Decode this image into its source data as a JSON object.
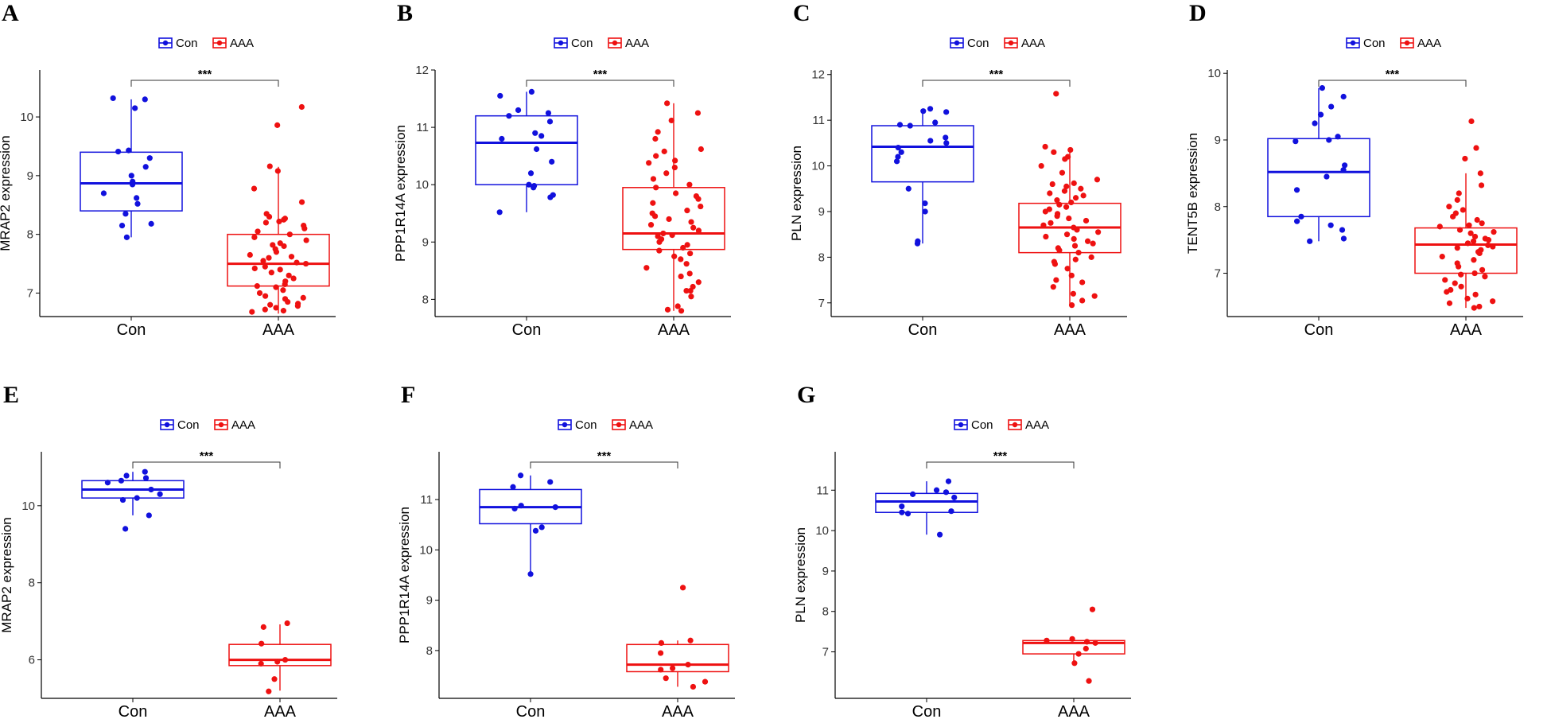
{
  "colors": {
    "con": "#1111dd",
    "aaa": "#ee1111",
    "axis": "#000000"
  },
  "chart_data": [
    {
      "type": "box",
      "panel": "A",
      "ylabel": "MRAP2 expression",
      "xlabel": "",
      "categories": [
        "Con",
        "AAA"
      ],
      "ylim": [
        6.6,
        10.8
      ],
      "yticks": [
        7,
        8,
        9,
        10
      ],
      "legend": [
        "Con",
        "AAA"
      ],
      "legend_position": "top",
      "significance": "***",
      "series": [
        {
          "name": "Con",
          "q1": 8.4,
          "median": 8.87,
          "q3": 9.4,
          "whisker_low": 7.95,
          "whisker_high": 10.3,
          "points": [
            10.32,
            10.3,
            10.15,
            9.43,
            9.41,
            9.3,
            9.15,
            9.0,
            8.9,
            8.85,
            8.7,
            8.62,
            8.52,
            8.35,
            8.18,
            8.15,
            7.95
          ]
        },
        {
          "name": "AAA",
          "q1": 7.12,
          "median": 7.5,
          "q3": 8.0,
          "whisker_low": 6.65,
          "whisker_high": 9.15,
          "points": [
            10.17,
            9.86,
            9.16,
            9.08,
            8.78,
            8.55,
            8.35,
            8.3,
            8.27,
            8.25,
            8.22,
            8.2,
            8.15,
            8.1,
            8.05,
            8.0,
            7.95,
            7.9,
            7.85,
            7.82,
            7.8,
            7.75,
            7.7,
            7.65,
            7.62,
            7.6,
            7.55,
            7.52,
            7.5,
            7.45,
            7.42,
            7.4,
            7.35,
            7.3,
            7.25,
            7.2,
            7.15,
            7.12,
            7.1,
            7.05,
            7.0,
            6.95,
            6.92,
            6.9,
            6.85,
            6.82,
            6.8,
            6.78,
            6.75,
            6.72,
            6.7,
            6.68
          ]
        }
      ]
    },
    {
      "type": "box",
      "panel": "B",
      "ylabel": "PPP1R14A expression",
      "xlabel": "",
      "categories": [
        "Con",
        "AAA"
      ],
      "ylim": [
        7.7,
        12.0
      ],
      "yticks": [
        8,
        9,
        10,
        11,
        12
      ],
      "legend": [
        "Con",
        "AAA"
      ],
      "legend_position": "top",
      "significance": "***",
      "series": [
        {
          "name": "Con",
          "q1": 10.0,
          "median": 10.73,
          "q3": 11.2,
          "whisker_low": 9.52,
          "whisker_high": 11.62,
          "points": [
            11.62,
            11.55,
            11.3,
            11.25,
            11.2,
            11.1,
            10.9,
            10.85,
            10.8,
            10.62,
            10.4,
            10.2,
            10.0,
            9.98,
            9.95,
            9.82,
            9.78,
            9.52
          ]
        },
        {
          "name": "AAA",
          "q1": 8.87,
          "median": 9.15,
          "q3": 9.95,
          "whisker_low": 7.8,
          "whisker_high": 11.42,
          "points": [
            11.42,
            11.25,
            11.12,
            10.92,
            10.8,
            10.62,
            10.58,
            10.5,
            10.42,
            10.38,
            10.3,
            10.2,
            10.1,
            10.0,
            9.95,
            9.85,
            9.8,
            9.75,
            9.68,
            9.62,
            9.55,
            9.5,
            9.45,
            9.4,
            9.35,
            9.3,
            9.25,
            9.2,
            9.15,
            9.12,
            9.1,
            9.05,
            9.0,
            8.95,
            8.9,
            8.85,
            8.8,
            8.75,
            8.7,
            8.62,
            8.55,
            8.45,
            8.4,
            8.3,
            8.22,
            8.15,
            8.15,
            8.05,
            7.88,
            7.82,
            7.8
          ]
        }
      ]
    },
    {
      "type": "box",
      "panel": "C",
      "ylabel": "PLN expression",
      "xlabel": "",
      "categories": [
        "Con",
        "AAA"
      ],
      "ylim": [
        6.7,
        12.1
      ],
      "yticks": [
        7,
        8,
        9,
        10,
        11,
        12
      ],
      "legend": [
        "Con",
        "AAA"
      ],
      "legend_position": "top",
      "significance": "***",
      "series": [
        {
          "name": "Con",
          "q1": 9.65,
          "median": 10.42,
          "q3": 10.88,
          "whisker_low": 8.3,
          "whisker_high": 11.25,
          "points": [
            11.25,
            11.2,
            11.18,
            10.95,
            10.9,
            10.88,
            10.62,
            10.55,
            10.5,
            10.4,
            10.3,
            10.2,
            10.1,
            9.5,
            9.18,
            9.0,
            8.35,
            8.3
          ]
        },
        {
          "name": "AAA",
          "q1": 8.1,
          "median": 8.65,
          "q3": 9.18,
          "whisker_low": 6.95,
          "whisker_high": 10.35,
          "points": [
            11.58,
            10.42,
            10.35,
            10.3,
            10.2,
            10.15,
            10.0,
            9.85,
            9.7,
            9.62,
            9.6,
            9.55,
            9.5,
            9.45,
            9.4,
            9.35,
            9.3,
            9.25,
            9.2,
            9.15,
            9.1,
            9.05,
            9.0,
            8.95,
            8.9,
            8.85,
            8.8,
            8.75,
            8.7,
            8.65,
            8.6,
            8.55,
            8.5,
            8.45,
            8.4,
            8.35,
            8.3,
            8.25,
            8.2,
            8.15,
            8.1,
            8.0,
            7.95,
            7.9,
            7.85,
            7.75,
            7.6,
            7.5,
            7.45,
            7.35,
            7.2,
            7.15,
            7.05,
            6.95
          ]
        }
      ]
    },
    {
      "type": "box",
      "panel": "D",
      "ylabel": "TENT5B expression",
      "xlabel": "",
      "categories": [
        "Con",
        "AAA"
      ],
      "ylim": [
        6.35,
        10.05
      ],
      "yticks": [
        7,
        8,
        9,
        10
      ],
      "legend": [
        "Con",
        "AAA"
      ],
      "legend_position": "top",
      "significance": "***",
      "series": [
        {
          "name": "Con",
          "q1": 7.85,
          "median": 8.52,
          "q3": 9.02,
          "whisker_low": 7.48,
          "whisker_high": 9.78,
          "points": [
            9.78,
            9.65,
            9.5,
            9.38,
            9.25,
            9.05,
            9.0,
            8.98,
            8.62,
            8.55,
            8.45,
            8.25,
            7.85,
            7.78,
            7.72,
            7.65,
            7.52,
            7.48
          ]
        },
        {
          "name": "AAA",
          "q1": 7.0,
          "median": 7.43,
          "q3": 7.68,
          "whisker_low": 6.48,
          "whisker_high": 8.5,
          "points": [
            9.28,
            8.88,
            8.72,
            8.5,
            8.32,
            8.2,
            8.1,
            8.0,
            7.95,
            7.9,
            7.85,
            7.8,
            7.75,
            7.72,
            7.7,
            7.65,
            7.62,
            7.6,
            7.55,
            7.52,
            7.5,
            7.48,
            7.45,
            7.42,
            7.4,
            7.38,
            7.35,
            7.32,
            7.3,
            7.25,
            7.2,
            7.15,
            7.1,
            7.05,
            7.0,
            6.98,
            6.95,
            6.9,
            6.85,
            6.8,
            6.75,
            6.72,
            6.68,
            6.62,
            6.58,
            6.55,
            6.5,
            6.48
          ]
        }
      ]
    },
    {
      "type": "box",
      "panel": "E",
      "ylabel": "MRAP2 expression",
      "xlabel": "",
      "categories": [
        "Con",
        "AAA"
      ],
      "ylim": [
        5.0,
        11.4
      ],
      "yticks": [
        6,
        8,
        10
      ],
      "legend": [
        "Con",
        "AAA"
      ],
      "legend_position": "top",
      "significance": "***",
      "series": [
        {
          "name": "Con",
          "q1": 10.2,
          "median": 10.42,
          "q3": 10.65,
          "whisker_low": 9.75,
          "whisker_high": 10.88,
          "points": [
            10.88,
            10.78,
            10.72,
            10.65,
            10.6,
            10.42,
            10.3,
            10.2,
            10.15,
            9.75,
            9.4
          ]
        },
        {
          "name": "AAA",
          "q1": 5.85,
          "median": 6.0,
          "q3": 6.4,
          "whisker_low": 5.2,
          "whisker_high": 6.92,
          "points": [
            6.95,
            6.85,
            6.42,
            6.0,
            5.95,
            5.9,
            5.5,
            5.18
          ]
        }
      ]
    },
    {
      "type": "box",
      "panel": "F",
      "ylabel": "PPP1R14A expression",
      "xlabel": "",
      "categories": [
        "Con",
        "AAA"
      ],
      "ylim": [
        7.05,
        11.95
      ],
      "yticks": [
        8,
        9,
        10,
        11
      ],
      "legend": [
        "Con",
        "AAA"
      ],
      "legend_position": "top",
      "significance": "***",
      "series": [
        {
          "name": "Con",
          "q1": 10.52,
          "median": 10.85,
          "q3": 11.2,
          "whisker_low": 9.52,
          "whisker_high": 11.48,
          "points": [
            11.48,
            11.35,
            11.25,
            10.88,
            10.85,
            10.82,
            10.45,
            10.38,
            9.52
          ]
        },
        {
          "name": "AAA",
          "q1": 7.58,
          "median": 7.72,
          "q3": 8.12,
          "whisker_low": 7.28,
          "whisker_high": 8.2,
          "points": [
            9.25,
            8.2,
            8.15,
            7.95,
            7.72,
            7.65,
            7.62,
            7.45,
            7.38,
            7.28
          ]
        }
      ]
    },
    {
      "type": "box",
      "panel": "G",
      "ylabel": "PLN expression",
      "xlabel": "",
      "categories": [
        "Con",
        "AAA"
      ],
      "ylim": [
        5.85,
        11.95
      ],
      "yticks": [
        7,
        8,
        9,
        10,
        11
      ],
      "legend": [
        "Con",
        "AAA"
      ],
      "legend_position": "top",
      "significance": "***",
      "series": [
        {
          "name": "Con",
          "q1": 10.45,
          "median": 10.72,
          "q3": 10.92,
          "whisker_low": 9.9,
          "whisker_high": 11.22,
          "points": [
            11.22,
            11.0,
            10.95,
            10.9,
            10.82,
            10.6,
            10.48,
            10.45,
            10.42,
            9.9
          ]
        },
        {
          "name": "AAA",
          "q1": 6.95,
          "median": 7.22,
          "q3": 7.28,
          "whisker_low": 6.72,
          "whisker_high": 7.32,
          "points": [
            8.05,
            7.32,
            7.28,
            7.25,
            7.22,
            7.08,
            6.95,
            6.72,
            6.28
          ]
        }
      ]
    }
  ]
}
